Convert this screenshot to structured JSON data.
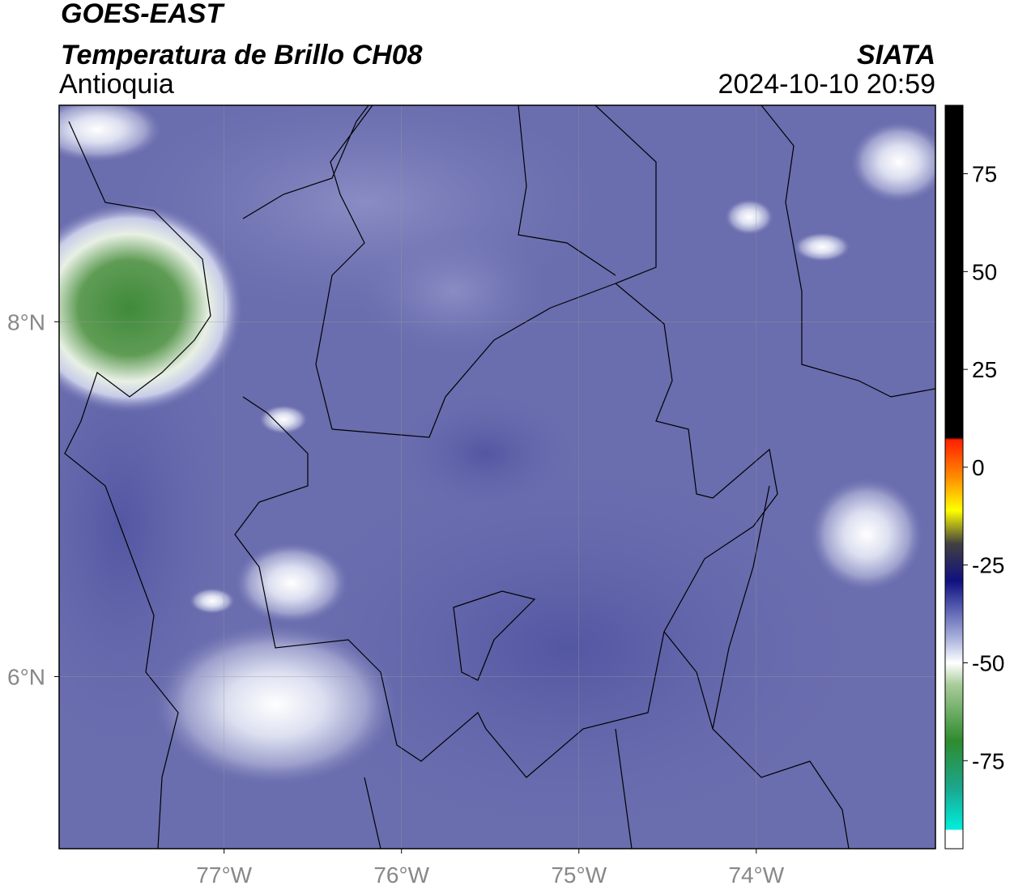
{
  "header": {
    "satellite": "GOES-EAST",
    "title": "Temperatura de Brillo CH08",
    "source": "SIATA",
    "region": "Antioquia",
    "timestamp": "2024-10-10 20:59"
  },
  "map": {
    "xlim": [
      -77.93,
      -72.99
    ],
    "ylim": [
      5.03,
      9.22
    ],
    "grid": true,
    "xticks": [
      {
        "value": -77,
        "label": "77°W"
      },
      {
        "value": -76,
        "label": "76°W"
      },
      {
        "value": -75,
        "label": "75°W"
      },
      {
        "value": -74,
        "label": "74°W"
      }
    ],
    "yticks": [
      {
        "value": 8,
        "label": "8°N"
      },
      {
        "value": 6,
        "label": "6°N"
      }
    ]
  },
  "colorbar": {
    "lim": [
      -97.5,
      92.5
    ],
    "ticks": [
      75,
      50,
      25,
      0,
      -25,
      -50,
      -75
    ]
  }
}
